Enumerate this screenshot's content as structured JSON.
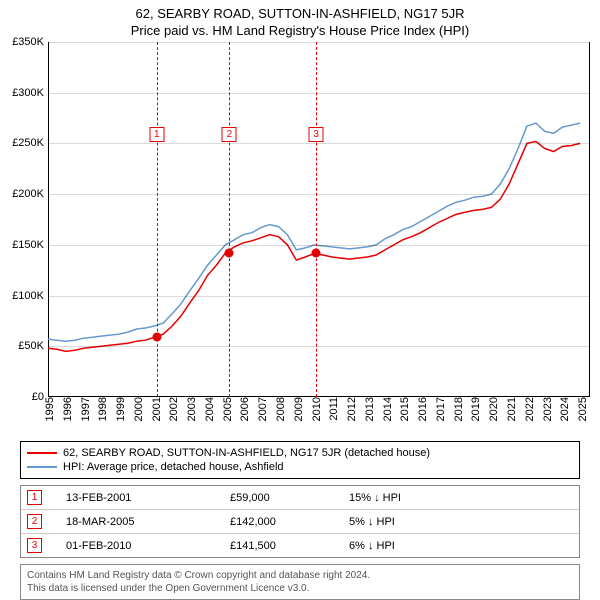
{
  "title_main": "62, SEARBY ROAD, SUTTON-IN-ASHFIELD, NG17 5JR",
  "title_sub": "Price paid vs. HM Land Registry's House Price Index (HPI)",
  "chart": {
    "type": "line",
    "background_color": "#ffffff",
    "grid_color": "#cccccc",
    "x_years": [
      1995,
      1996,
      1997,
      1998,
      1999,
      2000,
      2001,
      2002,
      2003,
      2004,
      2005,
      2006,
      2007,
      2008,
      2009,
      2010,
      2011,
      2012,
      2013,
      2014,
      2015,
      2016,
      2017,
      2018,
      2019,
      2020,
      2021,
      2022,
      2023,
      2024,
      2025
    ],
    "xlim": [
      1995,
      2025.5
    ],
    "ylim": [
      0,
      350000
    ],
    "ytick_step": 50000,
    "ytick_labels": [
      "£0",
      "£50K",
      "£100K",
      "£150K",
      "£200K",
      "£250K",
      "£300K",
      "£350K"
    ],
    "label_fontsize": 11,
    "series": [
      {
        "name": "red",
        "label": "62, SEARBY ROAD, SUTTON-IN-ASHFIELD, NG17 5JR (detached house)",
        "color": "#e60000",
        "line_width": 1.5,
        "x": [
          1995,
          1995.5,
          1996,
          1996.5,
          1997,
          1997.5,
          1998,
          1998.5,
          1999,
          1999.5,
          2000,
          2000.5,
          2001,
          2001.5,
          2002,
          2002.5,
          2003,
          2003.5,
          2004,
          2004.5,
          2005,
          2005.5,
          2006,
          2006.5,
          2007,
          2007.5,
          2008,
          2008.5,
          2009,
          2009.5,
          2010,
          2010.5,
          2011,
          2011.5,
          2012,
          2012.5,
          2013,
          2013.5,
          2014,
          2014.5,
          2015,
          2015.5,
          2016,
          2016.5,
          2017,
          2017.5,
          2018,
          2018.5,
          2019,
          2019.5,
          2020,
          2020.5,
          2021,
          2021.5,
          2022,
          2022.5,
          2023,
          2023.5,
          2024,
          2024.5,
          2025
        ],
        "y": [
          48000,
          47000,
          45000,
          46000,
          48000,
          49000,
          50000,
          51000,
          52000,
          53000,
          55000,
          56000,
          59000,
          62000,
          70000,
          80000,
          93000,
          105000,
          120000,
          130000,
          142000,
          148000,
          152000,
          154000,
          157000,
          160000,
          158000,
          150000,
          135000,
          138000,
          141500,
          140000,
          138000,
          137000,
          136000,
          137000,
          138000,
          140000,
          145000,
          150000,
          155000,
          158000,
          162000,
          167000,
          172000,
          176000,
          180000,
          182000,
          184000,
          185000,
          187000,
          195000,
          210000,
          230000,
          250000,
          252000,
          245000,
          242000,
          247000,
          248000,
          250000
        ]
      },
      {
        "name": "blue",
        "label": "HPI: Average price, detached house, Ashfield",
        "color": "#6699cc",
        "line_width": 1.5,
        "x": [
          1995,
          1995.5,
          1996,
          1996.5,
          1997,
          1997.5,
          1998,
          1998.5,
          1999,
          1999.5,
          2000,
          2000.5,
          2001,
          2001.5,
          2002,
          2002.5,
          2003,
          2003.5,
          2004,
          2004.5,
          2005,
          2005.5,
          2006,
          2006.5,
          2007,
          2007.5,
          2008,
          2008.5,
          2009,
          2009.5,
          2010,
          2010.5,
          2011,
          2011.5,
          2012,
          2012.5,
          2013,
          2013.5,
          2014,
          2014.5,
          2015,
          2015.5,
          2016,
          2016.5,
          2017,
          2017.5,
          2018,
          2018.5,
          2019,
          2019.5,
          2020,
          2020.5,
          2021,
          2021.5,
          2022,
          2022.5,
          2023,
          2023.5,
          2024,
          2024.5,
          2025
        ],
        "y": [
          57000,
          56000,
          55000,
          56000,
          58000,
          59000,
          60000,
          61000,
          62000,
          64000,
          67000,
          68000,
          70000,
          73000,
          82000,
          92000,
          105000,
          117000,
          130000,
          140000,
          150000,
          155000,
          160000,
          162000,
          167000,
          170000,
          168000,
          160000,
          145000,
          147000,
          150000,
          149000,
          148000,
          147000,
          146000,
          147000,
          148000,
          150000,
          156000,
          160000,
          165000,
          168000,
          173000,
          178000,
          183000,
          188000,
          192000,
          194000,
          197000,
          198000,
          200000,
          210000,
          225000,
          245000,
          267000,
          270000,
          262000,
          260000,
          266000,
          268000,
          270000
        ]
      }
    ],
    "markers": [
      {
        "n": "1",
        "x_year": 2001.12,
        "color": "#e60000",
        "box_top": 85,
        "dot_y": 59000
      },
      {
        "n": "2",
        "x_year": 2005.21,
        "color": "#e60000",
        "box_top": 85,
        "dot_y": 142000
      },
      {
        "n": "3",
        "x_year": 2010.09,
        "color": "#e60000",
        "box_top": 85,
        "dot_y": 141500
      }
    ]
  },
  "legend": {
    "items": [
      {
        "color": "#e60000",
        "label": "62, SEARBY ROAD, SUTTON-IN-ASHFIELD, NG17 5JR (detached house)"
      },
      {
        "color": "#6699cc",
        "label": "HPI: Average price, detached house, Ashfield"
      }
    ]
  },
  "table": {
    "rows": [
      {
        "n": "1",
        "color": "#e60000",
        "date": "13-FEB-2001",
        "price": "£59,000",
        "pct": "15% ↓ HPI"
      },
      {
        "n": "2",
        "color": "#e60000",
        "date": "18-MAR-2005",
        "price": "£142,000",
        "pct": "5% ↓ HPI"
      },
      {
        "n": "3",
        "color": "#e60000",
        "date": "01-FEB-2010",
        "price": "£141,500",
        "pct": "6% ↓ HPI"
      }
    ]
  },
  "footer": {
    "line1": "Contains HM Land Registry data © Crown copyright and database right 2024.",
    "line2": "This data is licensed under the Open Government Licence v3.0."
  }
}
